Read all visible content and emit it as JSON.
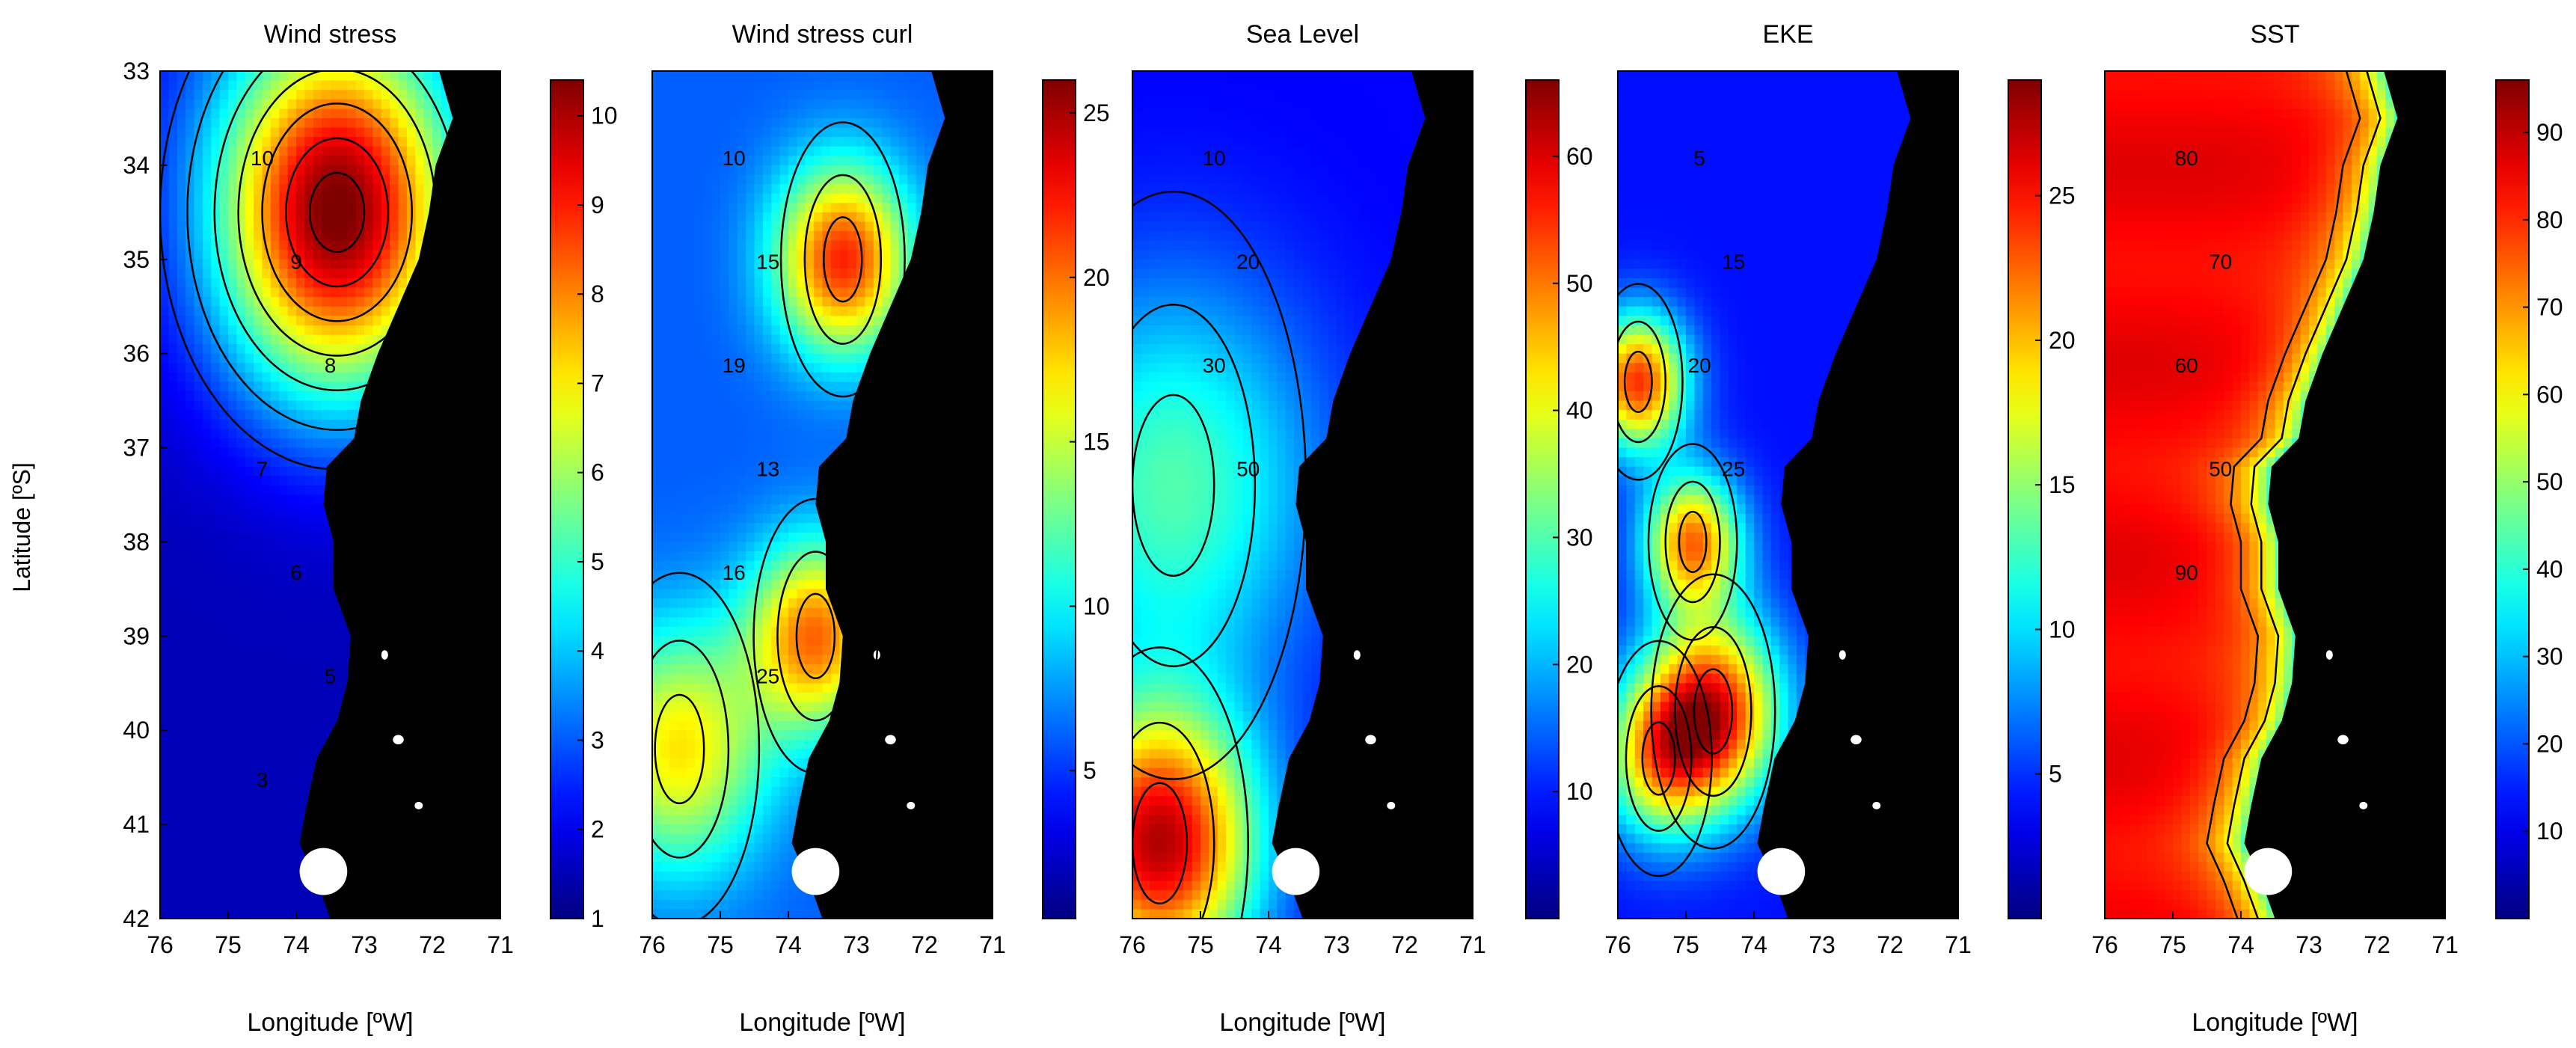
{
  "figure": {
    "ylabel": "Latitude [ºS]",
    "xlabel": "Longitude [ºW]"
  },
  "chart_data": [
    {
      "type": "heatmap",
      "title": "Wind stress",
      "xlim": [
        76,
        71
      ],
      "ylim": [
        42,
        33
      ],
      "xticks": [
        "76",
        "75",
        "74",
        "73",
        "72",
        "71"
      ],
      "yticks": [
        "33",
        "34",
        "35",
        "36",
        "37",
        "38",
        "39",
        "40",
        "41",
        "42"
      ],
      "xlabel": "Longitude [ºW]",
      "ylabel": "Latitude [ºS]",
      "colorbar": {
        "min": 1,
        "max": 10.4,
        "ticks": [
          "1",
          "2",
          "3",
          "4",
          "5",
          "6",
          "7",
          "8",
          "9",
          "10"
        ]
      },
      "field": {
        "centers": [
          {
            "lon": 73.4,
            "lat": 34.5,
            "value": 10.2,
            "spread": 1.6
          }
        ],
        "background": 2.0
      },
      "contour_labels": [
        "10",
        "9",
        "8",
        "7",
        "6",
        "5",
        "3"
      ],
      "colormap": "jet",
      "land_color": "#000000"
    },
    {
      "type": "heatmap",
      "title": "Wind stress curl",
      "xlim": [
        76,
        71
      ],
      "ylim": [
        42,
        33
      ],
      "xticks": [
        "76",
        "75",
        "74",
        "73",
        "72",
        "71"
      ],
      "colorbar": {
        "min": 0.5,
        "max": 26,
        "ticks": [
          "5",
          "10",
          "15",
          "20",
          "25"
        ]
      },
      "field": {
        "centers": [
          {
            "lon": 73.2,
            "lat": 35.0,
            "value": 22,
            "spread": 0.7
          },
          {
            "lon": 73.6,
            "lat": 39.0,
            "value": 20,
            "spread": 0.7
          },
          {
            "lon": 75.6,
            "lat": 40.2,
            "value": 17,
            "spread": 0.9
          }
        ],
        "background": 6
      },
      "contour_labels": [
        "10",
        "15",
        "19",
        "13",
        "16",
        "25"
      ],
      "colormap": "jet",
      "land_color": "#000000"
    },
    {
      "type": "heatmap",
      "title": "Sea Level",
      "xlim": [
        76,
        71
      ],
      "ylim": [
        42,
        33
      ],
      "xticks": [
        "76",
        "75",
        "74",
        "73",
        "72",
        "71"
      ],
      "colorbar": {
        "min": 0,
        "max": 66,
        "ticks": [
          "10",
          "20",
          "30",
          "40",
          "50",
          "60"
        ]
      },
      "field": {
        "centers": [
          {
            "lon": 75.6,
            "lat": 41.2,
            "value": 62,
            "spread": 1.0
          },
          {
            "lon": 75.4,
            "lat": 37.4,
            "value": 30,
            "spread": 1.5
          }
        ],
        "background": 8
      },
      "contour_labels": [
        "10",
        "20",
        "30",
        "50"
      ],
      "colormap": "jet",
      "land_color": "#000000"
    },
    {
      "type": "heatmap",
      "title": "EKE",
      "xlim": [
        76,
        71
      ],
      "ylim": [
        42,
        33
      ],
      "xticks": [
        "76",
        "75",
        "74",
        "73",
        "72",
        "71"
      ],
      "colorbar": {
        "min": 0,
        "max": 29,
        "ticks": [
          "5",
          "10",
          "15",
          "20",
          "25"
        ]
      },
      "field": {
        "centers": [
          {
            "lon": 75.7,
            "lat": 36.3,
            "value": 24,
            "spread": 0.5
          },
          {
            "lon": 74.9,
            "lat": 38.0,
            "value": 22,
            "spread": 0.5
          },
          {
            "lon": 74.6,
            "lat": 39.8,
            "value": 25,
            "spread": 0.7
          },
          {
            "lon": 75.4,
            "lat": 40.3,
            "value": 17,
            "spread": 0.6
          }
        ],
        "background": 4
      },
      "contour_labels": [
        "5",
        "15",
        "20",
        "25"
      ],
      "colormap": "jet",
      "land_color": "#000000"
    },
    {
      "type": "heatmap",
      "title": "SST",
      "xlim": [
        76,
        71
      ],
      "ylim": [
        42,
        33
      ],
      "xticks": [
        "76",
        "75",
        "74",
        "73",
        "72",
        "71"
      ],
      "colorbar": {
        "min": 0,
        "max": 96,
        "ticks": [
          "10",
          "20",
          "30",
          "40",
          "50",
          "60",
          "70",
          "80",
          "90"
        ]
      },
      "field": {
        "centers": [],
        "background": 85
      },
      "contour_labels": [
        "80",
        "70",
        "60",
        "50",
        "90"
      ],
      "colormap": "jet",
      "land_color": "#000000"
    }
  ]
}
